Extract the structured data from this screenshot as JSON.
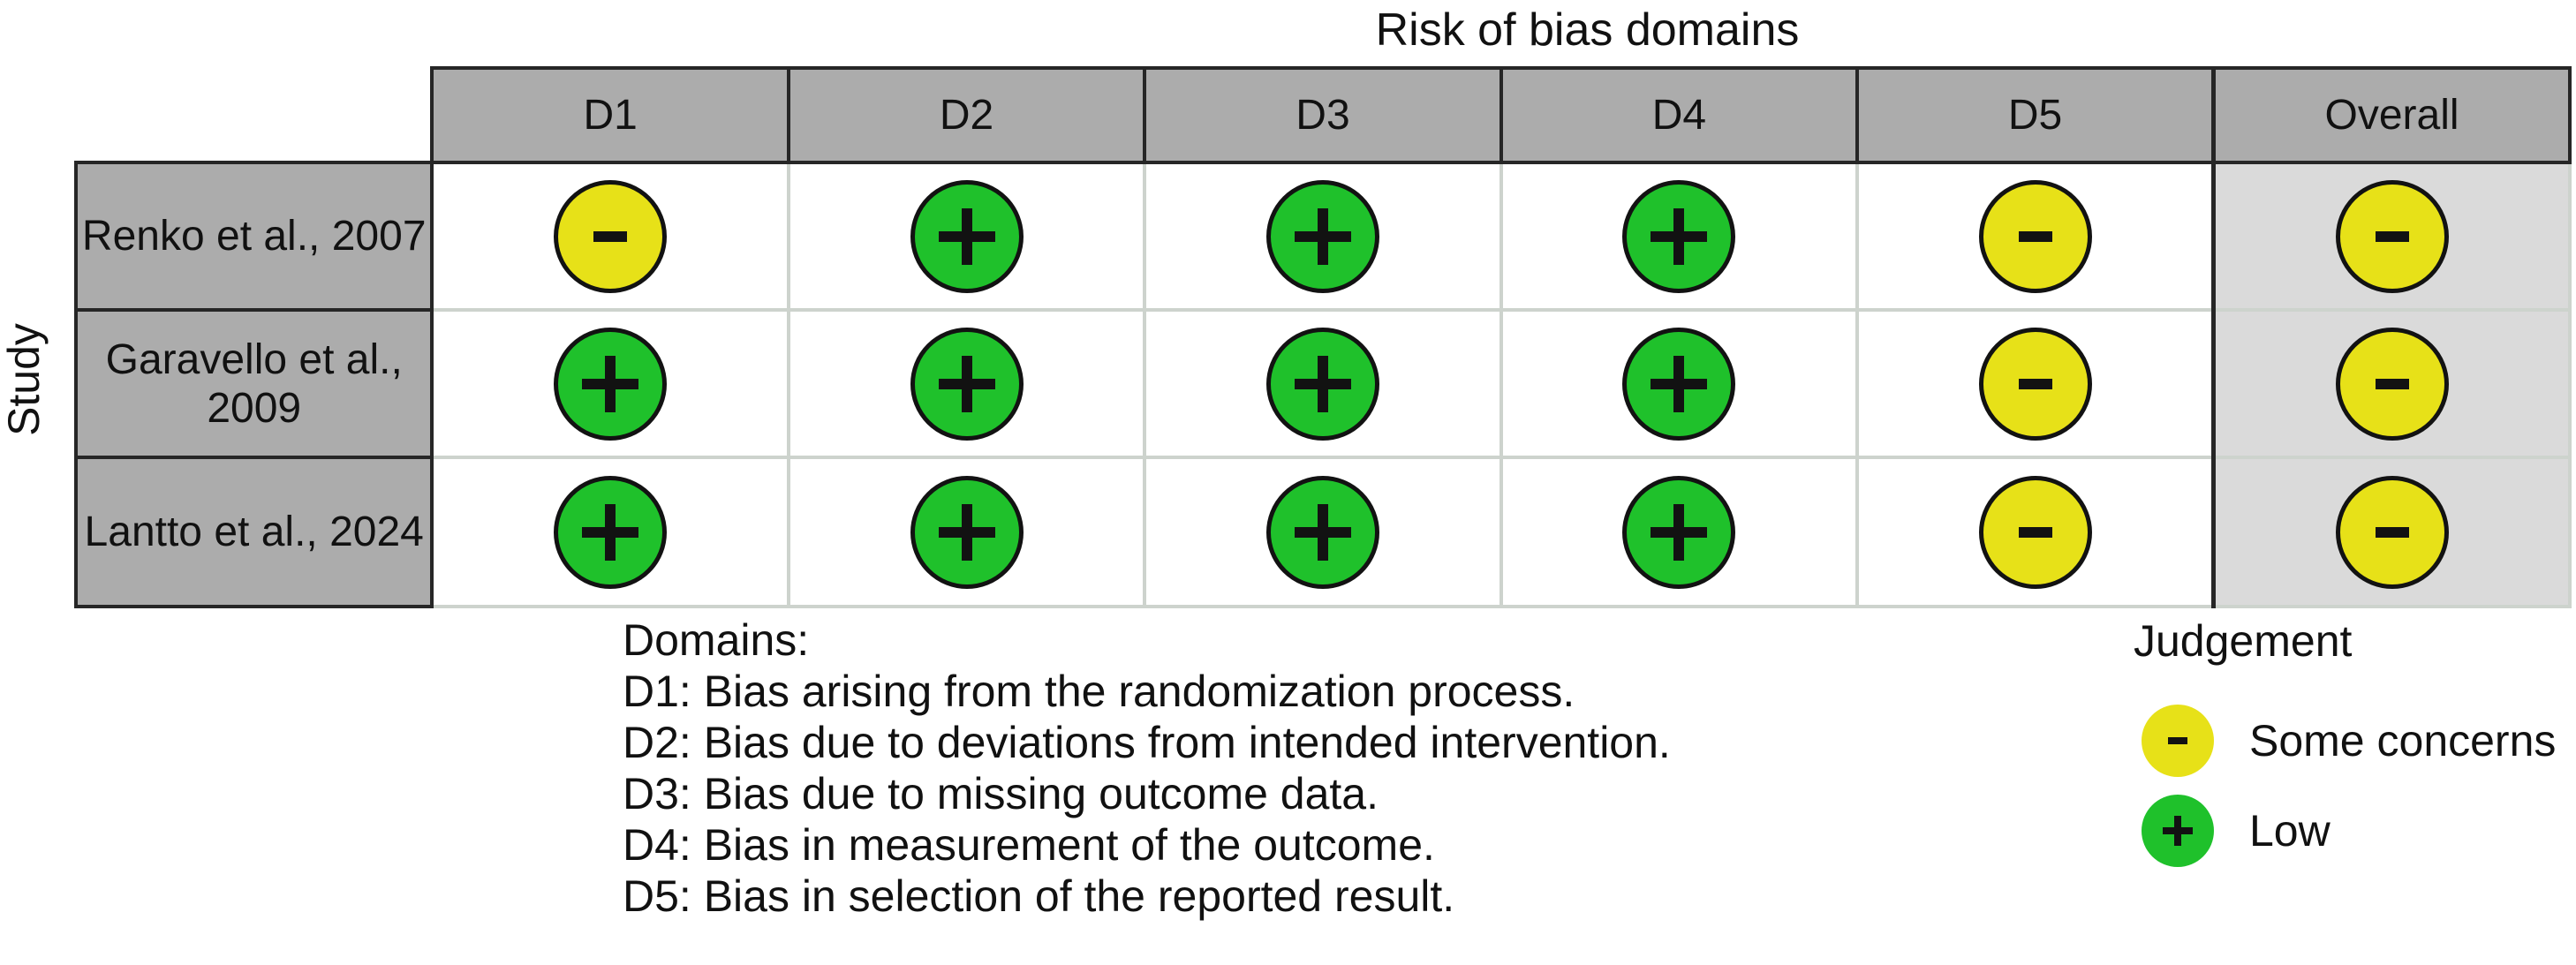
{
  "chart_data": {
    "type": "table",
    "subtype": "risk-of-bias-traffic-light",
    "title": "Risk of bias domains",
    "row_axis_label": "Study",
    "columns": [
      "D1",
      "D2",
      "D3",
      "D4",
      "D5",
      "Overall"
    ],
    "rows": [
      {
        "study": "Renko et al., 2007",
        "judgements": [
          "some_concerns",
          "low",
          "low",
          "low",
          "some_concerns",
          "some_concerns"
        ]
      },
      {
        "study": "Garavello et al., 2009",
        "judgements": [
          "low",
          "low",
          "low",
          "low",
          "some_concerns",
          "some_concerns"
        ]
      },
      {
        "study": "Lantto et al., 2024",
        "judgements": [
          "low",
          "low",
          "low",
          "low",
          "some_concerns",
          "some_concerns"
        ]
      }
    ],
    "judgements": {
      "low": {
        "label": "Low",
        "symbol": "plus",
        "color": "#1FC12B"
      },
      "some_concerns": {
        "label": "Some concerns",
        "symbol": "minus",
        "color": "#E7E118"
      }
    },
    "domains_legend": {
      "heading": "Domains:",
      "items": [
        "D1: Bias arising from the randomization process.",
        "D2: Bias due to deviations from intended intervention.",
        "D3: Bias due to missing outcome data.",
        "D4: Bias in measurement of the outcome.",
        "D5: Bias in selection of the reported result."
      ]
    },
    "judgement_legend": {
      "heading": "Judgement",
      "items": [
        {
          "judgement": "some_concerns",
          "label": "Some concerns"
        },
        {
          "judgement": "low",
          "label": "Low"
        }
      ]
    }
  },
  "colors": {
    "header_bg": "#ACACAC",
    "rowlabel_bg": "#ACACAC",
    "overall_bg": "#DADADA",
    "grid_dark": "#262626",
    "grid_light": "#CDD3CD",
    "circle_stroke": "#121212",
    "text": "#111111",
    "page_bg": "#FFFFFF"
  }
}
